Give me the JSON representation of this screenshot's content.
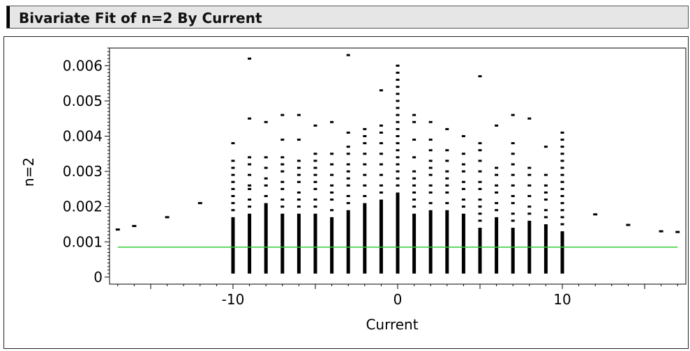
{
  "report": {
    "title": "Bivariate Fit of n=2 By Current"
  },
  "colors": {
    "points": "#000000",
    "fit_line": "#33cc33",
    "title_bar": "#e6e6e6"
  },
  "chart_data": {
    "type": "scatter",
    "title": "Bivariate Fit of n=2 By Current",
    "xlabel": "Current",
    "ylabel": "n=2",
    "xlim": [
      -17.5,
      17.5
    ],
    "ylim": [
      -0.0002,
      0.0065
    ],
    "xticks": [
      -10,
      0,
      10
    ],
    "xtick_labels": [
      "-10",
      "0",
      "10"
    ],
    "yticks": [
      0,
      0.001,
      0.002,
      0.003,
      0.004,
      0.005,
      0.006
    ],
    "ytick_labels": [
      "0",
      "0.001",
      "0.002",
      "0.003",
      "0.004",
      "0.005",
      "0.006"
    ],
    "grid": false,
    "legend": "none",
    "fit_line": {
      "type": "mean",
      "y": 0.00085
    },
    "columns": [
      {
        "x": -10,
        "solid": [
          0.0001,
          0.0017
        ],
        "dots": [
          0.0019,
          0.0021,
          0.0023,
          0.0025,
          0.0027,
          0.0029,
          0.0031,
          0.0033,
          0.0038
        ]
      },
      {
        "x": -9,
        "solid": [
          0.0001,
          0.0018
        ],
        "dots": [
          0.002,
          0.0022,
          0.0025,
          0.0026,
          0.0029,
          0.0032,
          0.0034,
          0.0045,
          0.0062
        ]
      },
      {
        "x": -8,
        "solid": [
          0.0001,
          0.0021
        ],
        "dots": [
          0.0023,
          0.0026,
          0.0028,
          0.0031,
          0.0034,
          0.0044
        ]
      },
      {
        "x": -7,
        "solid": [
          0.0001,
          0.0018
        ],
        "dots": [
          0.002,
          0.0022,
          0.0025,
          0.0027,
          0.003,
          0.0032,
          0.0034,
          0.0039,
          0.0046
        ]
      },
      {
        "x": -6,
        "solid": [
          0.0001,
          0.0018
        ],
        "dots": [
          0.002,
          0.0022,
          0.0024,
          0.0027,
          0.0029,
          0.0031,
          0.0033,
          0.0039,
          0.0046
        ]
      },
      {
        "x": -5,
        "solid": [
          0.0001,
          0.0018
        ],
        "dots": [
          0.002,
          0.0022,
          0.0025,
          0.0027,
          0.0029,
          0.0031,
          0.0033,
          0.0035,
          0.0043
        ]
      },
      {
        "x": -4,
        "solid": [
          0.0001,
          0.0017
        ],
        "dots": [
          0.0019,
          0.0022,
          0.0024,
          0.0026,
          0.0029,
          0.0032,
          0.0035,
          0.0044
        ]
      },
      {
        "x": -3,
        "solid": [
          0.0001,
          0.0019
        ],
        "dots": [
          0.0021,
          0.0023,
          0.0026,
          0.0028,
          0.003,
          0.0032,
          0.0035,
          0.0037,
          0.0041,
          0.0063
        ]
      },
      {
        "x": -2,
        "solid": [
          0.0001,
          0.0021
        ],
        "dots": [
          0.0023,
          0.0026,
          0.0029,
          0.0032,
          0.0035,
          0.0038,
          0.004,
          0.0042
        ]
      },
      {
        "x": -1,
        "solid": [
          0.0001,
          0.0022
        ],
        "dots": [
          0.0024,
          0.0026,
          0.0029,
          0.0032,
          0.0035,
          0.0038,
          0.0041,
          0.0043,
          0.0053
        ]
      },
      {
        "x": 0,
        "solid": [
          0.0001,
          0.0024
        ],
        "dots": [
          0.0026,
          0.0028,
          0.003,
          0.0032,
          0.0034,
          0.0036,
          0.0038,
          0.004,
          0.0042,
          0.0044,
          0.0046,
          0.0048,
          0.005,
          0.0052,
          0.0054,
          0.0056,
          0.0058,
          0.006
        ]
      },
      {
        "x": 1,
        "solid": [
          0.0001,
          0.0018
        ],
        "dots": [
          0.002,
          0.0022,
          0.0024,
          0.0026,
          0.0028,
          0.003,
          0.0034,
          0.0039,
          0.0044,
          0.0046
        ]
      },
      {
        "x": 2,
        "solid": [
          0.0001,
          0.0019
        ],
        "dots": [
          0.0021,
          0.0024,
          0.0026,
          0.0029,
          0.0031,
          0.0033,
          0.0036,
          0.0039,
          0.0044
        ]
      },
      {
        "x": 3,
        "solid": [
          0.0001,
          0.0019
        ],
        "dots": [
          0.0021,
          0.0024,
          0.0026,
          0.0028,
          0.003,
          0.0033,
          0.0036,
          0.0042
        ]
      },
      {
        "x": 4,
        "solid": [
          0.0001,
          0.0018
        ],
        "dots": [
          0.002,
          0.0022,
          0.0025,
          0.0027,
          0.003,
          0.0032,
          0.0035,
          0.004
        ]
      },
      {
        "x": 5,
        "solid": [
          0.0001,
          0.0014
        ],
        "dots": [
          0.0016,
          0.0018,
          0.002,
          0.0022,
          0.0025,
          0.0027,
          0.003,
          0.0033,
          0.0036,
          0.0038,
          0.0057
        ]
      },
      {
        "x": 6,
        "solid": [
          0.0001,
          0.0017
        ],
        "dots": [
          0.0019,
          0.0021,
          0.0024,
          0.0026,
          0.0029,
          0.0031,
          0.0043
        ]
      },
      {
        "x": 7,
        "solid": [
          0.0001,
          0.0014
        ],
        "dots": [
          0.0016,
          0.0018,
          0.0021,
          0.0023,
          0.0026,
          0.0029,
          0.0032,
          0.0035,
          0.0038,
          0.0046
        ]
      },
      {
        "x": 8,
        "solid": [
          0.0001,
          0.0016
        ],
        "dots": [
          0.0018,
          0.002,
          0.0023,
          0.0026,
          0.0029,
          0.0031,
          0.0045
        ]
      },
      {
        "x": 9,
        "solid": [
          0.0001,
          0.0015
        ],
        "dots": [
          0.0017,
          0.0019,
          0.0022,
          0.0024,
          0.0026,
          0.0029,
          0.0037
        ]
      },
      {
        "x": 10,
        "solid": [
          0.0001,
          0.0013
        ],
        "dots": [
          0.0015,
          0.0017,
          0.0019,
          0.0021,
          0.0023,
          0.0025,
          0.0027,
          0.0029,
          0.0031,
          0.0033,
          0.0035,
          0.0037,
          0.0039,
          0.0041
        ]
      }
    ],
    "points": [
      {
        "x": -17,
        "y": 0.00135
      },
      {
        "x": -16,
        "y": 0.00145
      },
      {
        "x": -14,
        "y": 0.0017
      },
      {
        "x": -12,
        "y": 0.0021
      },
      {
        "x": 12,
        "y": 0.00178
      },
      {
        "x": 14,
        "y": 0.00148
      },
      {
        "x": 16,
        "y": 0.0013
      },
      {
        "x": 17,
        "y": 0.00128
      }
    ]
  }
}
